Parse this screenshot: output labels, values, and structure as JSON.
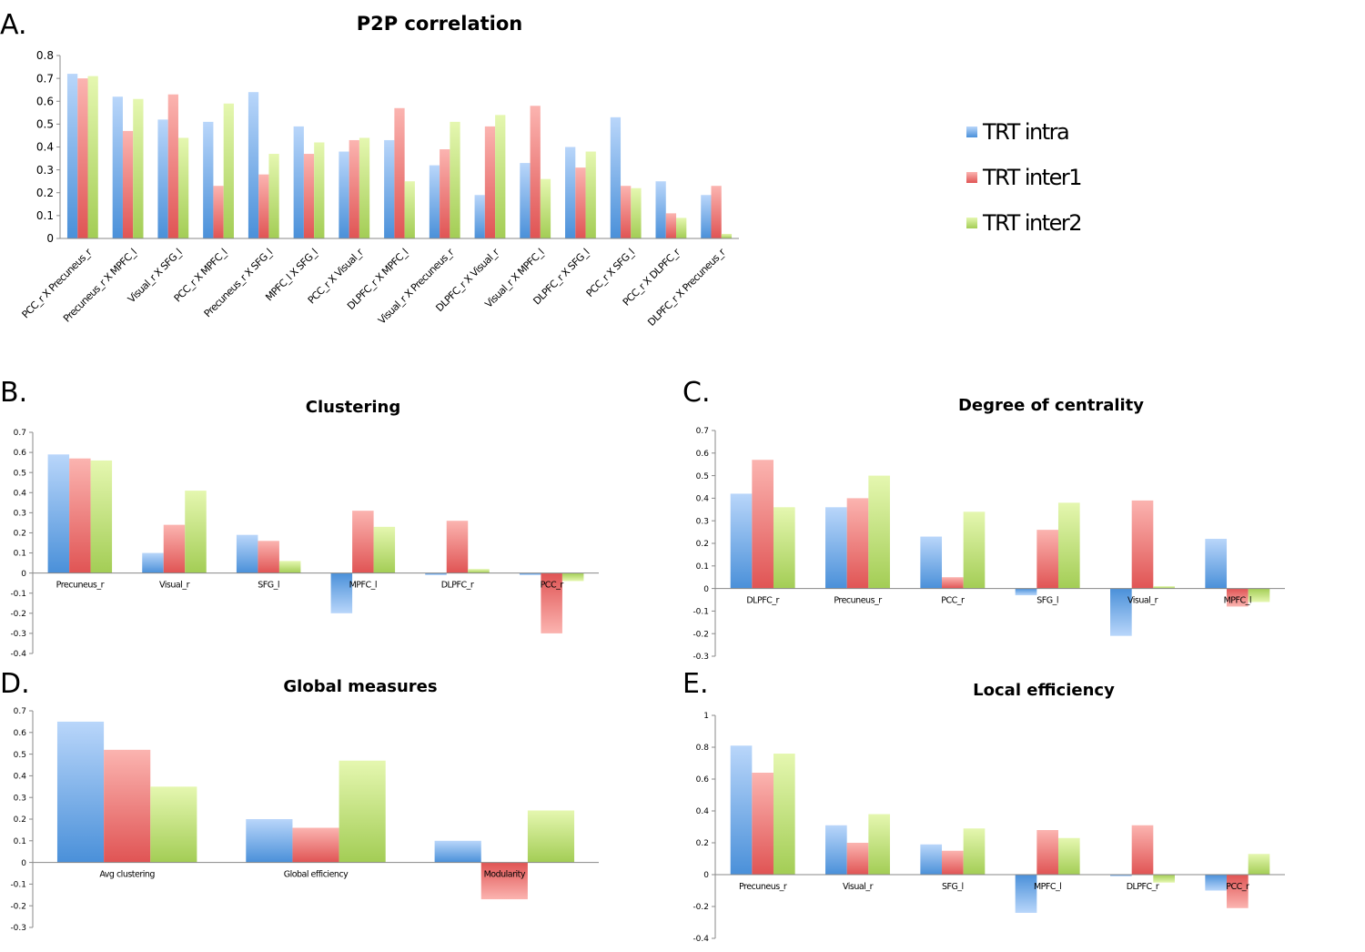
{
  "colors": {
    "intra": "#4a90d9",
    "intra_light": "#b9d6fa",
    "inter1": "#e05454",
    "inter1_light": "#fbb4b0",
    "inter2": "#a3cd55",
    "inter2_light": "#e5f7b0"
  },
  "legend": [
    {
      "label": "TRT intra",
      "color_key": "intra"
    },
    {
      "label": "TRT inter1",
      "color_key": "inter1"
    },
    {
      "label": "TRT inter2",
      "color_key": "inter2"
    }
  ],
  "panels": {
    "A": {
      "letter": "A.",
      "title": "P2P correlation"
    },
    "B": {
      "letter": "B.",
      "title": "Clustering"
    },
    "C": {
      "letter": "C.",
      "title": "Degree of centrality"
    },
    "D": {
      "letter": "D.",
      "title": "Global measures"
    },
    "E": {
      "letter": "E.",
      "title": "Local efficiency"
    }
  },
  "chart_data": [
    {
      "id": "A",
      "type": "bar",
      "title": "P2P correlation",
      "categories": [
        "PCC_r X Precuneus_r",
        "Precuneus_r X MPFC_l",
        "Visual_r X SFG_l",
        "PCC_r X MPFC_l",
        "Precuneus_r X SFG_l",
        "MPFC_l X SFG_l",
        "PCC_r X Visual_r",
        "DLPFC_r X MPFC_l",
        "Visual_r X Precuneus_r",
        "DLPFC_r X Visual_r",
        "Visual_r X MPFC_l",
        "DLPFC_r X SFG_l",
        "PCC_r X SFG_l",
        "PCC_r X DLPFC_r",
        "DLPFC_r X Precuneus_r"
      ],
      "series": [
        {
          "name": "TRT intra",
          "values": [
            0.72,
            0.62,
            0.52,
            0.51,
            0.64,
            0.49,
            0.38,
            0.43,
            0.32,
            0.19,
            0.33,
            0.4,
            0.53,
            0.25,
            0.19
          ]
        },
        {
          "name": "TRT inter1",
          "values": [
            0.7,
            0.47,
            0.63,
            0.23,
            0.28,
            0.37,
            0.43,
            0.57,
            0.39,
            0.49,
            0.58,
            0.31,
            0.23,
            0.11,
            0.23
          ]
        },
        {
          "name": "TRT inter2",
          "values": [
            0.71,
            0.61,
            0.44,
            0.59,
            0.37,
            0.42,
            0.44,
            0.25,
            0.51,
            0.54,
            0.26,
            0.38,
            0.22,
            0.09,
            0.02
          ]
        }
      ],
      "yticks": [
        "0",
        "0.1",
        "0.2",
        "0.3",
        "0.4",
        "0.5",
        "0.6",
        "0.7",
        "0.8"
      ],
      "ylim": [
        0,
        0.8
      ]
    },
    {
      "id": "B",
      "type": "bar",
      "title": "Clustering",
      "categories": [
        "Precuneus_r",
        "Visual_r",
        "SFG_l",
        "MPFC_l",
        "DLPFC_r",
        "PCC_r"
      ],
      "series": [
        {
          "name": "TRT intra",
          "values": [
            0.59,
            0.1,
            0.19,
            -0.2,
            -0.01,
            -0.01
          ]
        },
        {
          "name": "TRT inter1",
          "values": [
            0.57,
            0.24,
            0.16,
            0.31,
            0.26,
            -0.3
          ]
        },
        {
          "name": "TRT inter2",
          "values": [
            0.56,
            0.41,
            0.06,
            0.23,
            0.02,
            -0.04
          ]
        }
      ],
      "yticks": [
        "-0.4",
        "-0.3",
        "-0.2",
        "-0.1",
        "0",
        "0.1",
        "0.2",
        "0.3",
        "0.4",
        "0.5",
        "0.6",
        "0.7"
      ],
      "ylim": [
        -0.4,
        0.7
      ]
    },
    {
      "id": "C",
      "type": "bar",
      "title": "Degree of centrality",
      "categories": [
        "DLPFC_r",
        "Precuneus_r",
        "PCC_r",
        "SFG_l",
        "Visual_r",
        "MPFC_l"
      ],
      "series": [
        {
          "name": "TRT intra",
          "values": [
            0.42,
            0.36,
            0.23,
            -0.03,
            -0.21,
            0.22
          ]
        },
        {
          "name": "TRT inter1",
          "values": [
            0.57,
            0.4,
            0.05,
            0.26,
            0.39,
            -0.08
          ]
        },
        {
          "name": "TRT inter2",
          "values": [
            0.36,
            0.5,
            0.34,
            0.38,
            0.01,
            -0.06
          ]
        }
      ],
      "yticks": [
        "-0.3",
        "-0.2",
        "-0.1",
        "0",
        "0.1",
        "0.2",
        "0.3",
        "0.4",
        "0.5",
        "0.6",
        "0.7"
      ],
      "ylim": [
        -0.3,
        0.7
      ]
    },
    {
      "id": "D",
      "type": "bar",
      "title": "Global measures",
      "categories": [
        "Avg clustering",
        "Global efficiency",
        "Modularity"
      ],
      "series": [
        {
          "name": "TRT intra",
          "values": [
            0.65,
            0.2,
            0.1
          ]
        },
        {
          "name": "TRT inter1",
          "values": [
            0.52,
            0.16,
            -0.17
          ]
        },
        {
          "name": "TRT inter2",
          "values": [
            0.35,
            0.47,
            0.24
          ]
        }
      ],
      "yticks": [
        "-0.3",
        "-0.2",
        "-0.1",
        "0",
        "0.1",
        "0.2",
        "0.3",
        "0.4",
        "0.5",
        "0.6",
        "0.7"
      ],
      "ylim": [
        -0.3,
        0.7
      ]
    },
    {
      "id": "E",
      "type": "bar",
      "title": "Local efficiency",
      "categories": [
        "Precuneus_r",
        "Visual_r",
        "SFG_l",
        "MPFC_l",
        "DLPFC_r",
        "PCC_r"
      ],
      "series": [
        {
          "name": "TRT intra",
          "values": [
            0.81,
            0.31,
            0.19,
            -0.24,
            -0.01,
            -0.1
          ]
        },
        {
          "name": "TRT inter1",
          "values": [
            0.64,
            0.2,
            0.15,
            0.28,
            0.31,
            -0.21
          ]
        },
        {
          "name": "TRT inter2",
          "values": [
            0.76,
            0.38,
            0.29,
            0.23,
            -0.05,
            0.13
          ]
        }
      ],
      "yticks": [
        "-0.4",
        "-0.2",
        "0",
        "0.2",
        "0.4",
        "0.6",
        "0.8",
        "1"
      ],
      "ylim": [
        -0.4,
        1
      ]
    }
  ]
}
